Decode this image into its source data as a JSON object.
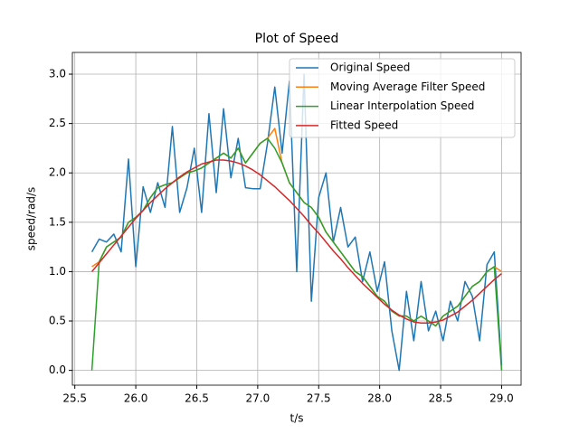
{
  "chart_data": {
    "type": "line",
    "title": "Plot of Speed",
    "x_label": "t/s",
    "y_label": "speed/rad/s",
    "x": [
      25.64,
      25.7,
      25.76,
      25.82,
      25.88,
      25.94,
      26.0,
      26.06,
      26.12,
      26.18,
      26.24,
      26.3,
      26.36,
      26.42,
      26.48,
      26.54,
      26.6,
      26.66,
      26.72,
      26.78,
      26.84,
      26.9,
      26.96,
      27.02,
      27.08,
      27.14,
      27.2,
      27.26,
      27.32,
      27.38,
      27.44,
      27.5,
      27.56,
      27.62,
      27.68,
      27.74,
      27.8,
      27.86,
      27.92,
      27.98,
      28.04,
      28.1,
      28.16,
      28.22,
      28.28,
      28.34,
      28.4,
      28.46,
      28.52,
      28.58,
      28.64,
      28.7,
      28.76,
      28.82,
      28.88,
      28.94,
      29.0
    ],
    "series": [
      {
        "name": "Original Speed",
        "color": "#1f77b4",
        "values": [
          1.2,
          1.33,
          1.3,
          1.38,
          1.2,
          2.14,
          1.05,
          1.86,
          1.6,
          1.9,
          1.65,
          2.47,
          1.6,
          1.85,
          2.25,
          1.6,
          2.6,
          1.8,
          2.65,
          1.95,
          2.35,
          1.85,
          1.84,
          1.84,
          2.3,
          2.87,
          2.2,
          2.93,
          1.0,
          3.0,
          0.7,
          1.75,
          2.0,
          1.3,
          1.65,
          1.25,
          1.35,
          0.9,
          1.2,
          0.8,
          1.1,
          0.4,
          0.0,
          0.8,
          0.3,
          0.9,
          0.4,
          0.6,
          0.3,
          0.7,
          0.5,
          0.9,
          0.75,
          0.3,
          1.07,
          1.2,
          0.05
        ]
      },
      {
        "name": "Moving Average Filter Speed",
        "color": "#ff7f0e",
        "values": [
          1.05,
          1.1,
          1.25,
          1.3,
          1.35,
          1.5,
          1.55,
          1.62,
          1.75,
          1.85,
          1.88,
          1.9,
          1.95,
          2.0,
          2.02,
          2.05,
          2.1,
          2.15,
          2.2,
          2.15,
          2.25,
          2.1,
          2.2,
          2.3,
          2.35,
          2.45,
          2.1,
          1.9,
          1.8,
          1.7,
          1.65,
          1.55,
          1.4,
          1.3,
          1.2,
          1.1,
          1.0,
          0.95,
          0.85,
          0.75,
          0.7,
          0.6,
          0.55,
          0.55,
          0.5,
          0.55,
          0.5,
          0.45,
          0.55,
          0.6,
          0.65,
          0.75,
          0.85,
          0.9,
          1.0,
          1.05,
          1.0
        ]
      },
      {
        "name": "Linear Interpolation Speed",
        "color": "#2ca02c",
        "values": [
          0.0,
          1.1,
          1.25,
          1.3,
          1.35,
          1.5,
          1.55,
          1.62,
          1.75,
          1.85,
          1.88,
          1.9,
          1.95,
          2.0,
          2.02,
          2.05,
          2.1,
          2.15,
          2.2,
          2.15,
          2.25,
          2.1,
          2.2,
          2.3,
          2.35,
          2.25,
          2.1,
          1.9,
          1.8,
          1.7,
          1.65,
          1.55,
          1.4,
          1.3,
          1.2,
          1.1,
          1.0,
          0.95,
          0.85,
          0.75,
          0.7,
          0.6,
          0.55,
          0.55,
          0.5,
          0.55,
          0.5,
          0.45,
          0.55,
          0.6,
          0.65,
          0.75,
          0.85,
          0.9,
          1.0,
          1.05,
          0.0
        ]
      },
      {
        "name": "Fitted Speed",
        "color": "#d62728",
        "values": [
          1.0,
          1.09,
          1.18,
          1.27,
          1.36,
          1.45,
          1.54,
          1.62,
          1.7,
          1.77,
          1.84,
          1.9,
          1.96,
          2.01,
          2.05,
          2.09,
          2.11,
          2.13,
          2.13,
          2.12,
          2.1,
          2.07,
          2.03,
          1.98,
          1.92,
          1.86,
          1.79,
          1.72,
          1.64,
          1.56,
          1.47,
          1.39,
          1.3,
          1.21,
          1.13,
          1.04,
          0.96,
          0.88,
          0.81,
          0.74,
          0.67,
          0.61,
          0.56,
          0.52,
          0.49,
          0.48,
          0.48,
          0.49,
          0.51,
          0.55,
          0.59,
          0.65,
          0.71,
          0.78,
          0.85,
          0.92,
          0.98
        ]
      }
    ],
    "xlim": [
      25.48,
      29.16
    ],
    "ylim": [
      -0.15,
      3.22
    ],
    "xticks": [
      25.5,
      {
        "value": 26,
        "label": "26.0"
      },
      26.5,
      {
        "value": 27,
        "label": "27.0"
      },
      27.5,
      {
        "value": 28,
        "label": "28.0"
      },
      28.5,
      {
        "value": 29,
        "label": "29.0"
      }
    ],
    "yticks": [
      {
        "value": 0,
        "label": "0.0"
      },
      0.5,
      {
        "value": 1,
        "label": "1.0"
      },
      1.5,
      {
        "value": 2,
        "label": "2.0"
      },
      2.5,
      {
        "value": 3,
        "label": "3.0"
      }
    ],
    "grid": true,
    "legend": "upper right"
  }
}
